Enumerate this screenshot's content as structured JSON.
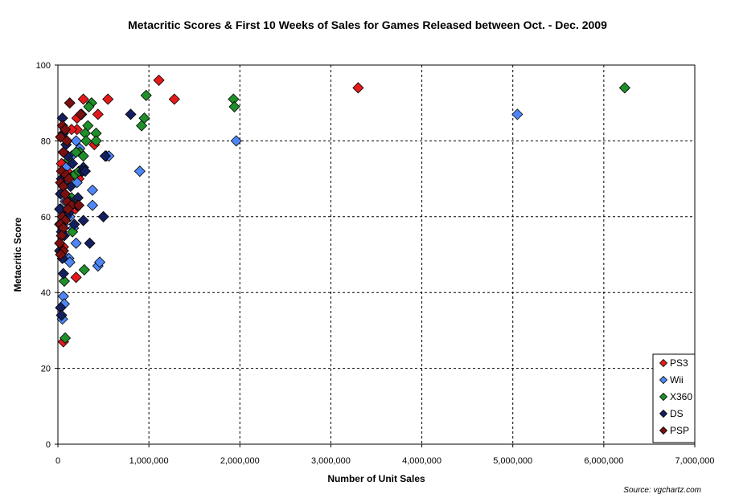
{
  "chart_data": {
    "type": "scatter",
    "title": "Metacritic Scores & First 10 Weeks of Sales for Games Released between Oct. - Dec. 2009",
    "xlabel": "Number of Unit Sales",
    "ylabel": "Metacritic Score",
    "source": "Source: vgchartz.com",
    "xlim": [
      0,
      7000000
    ],
    "ylim": [
      0,
      100
    ],
    "x_ticks": [
      0,
      1000000,
      2000000,
      3000000,
      4000000,
      5000000,
      6000000,
      7000000
    ],
    "x_tick_labels": [
      "0",
      "1,000,000",
      "2,000,000",
      "3,000,000",
      "4,000,000",
      "5,000,000",
      "6,000,000",
      "7,000,000"
    ],
    "y_ticks": [
      0,
      20,
      40,
      60,
      80,
      100
    ],
    "y_tick_labels": [
      "0",
      "20",
      "40",
      "60",
      "80",
      "100"
    ],
    "grid": true,
    "legend_position": "bottom-right",
    "series": [
      {
        "name": "PS3",
        "color": "#e31a1c",
        "points": [
          [
            1110000,
            96
          ],
          [
            3300000,
            94
          ],
          [
            550000,
            91
          ],
          [
            280000,
            91
          ],
          [
            1280000,
            91
          ],
          [
            440000,
            87
          ],
          [
            210000,
            86
          ],
          [
            210000,
            83
          ],
          [
            150000,
            83
          ],
          [
            400000,
            79
          ],
          [
            230000,
            70
          ],
          [
            190000,
            62
          ],
          [
            200000,
            44
          ],
          [
            60000,
            27
          ],
          [
            40000,
            74
          ],
          [
            30000,
            66
          ],
          [
            100000,
            72
          ],
          [
            20000,
            58
          ],
          [
            60000,
            52
          ],
          [
            90000,
            61
          ]
        ]
      },
      {
        "name": "Wii",
        "color": "#4f86f7",
        "points": [
          [
            5050000,
            87
          ],
          [
            1960000,
            80
          ],
          [
            900000,
            72
          ],
          [
            530000,
            76
          ],
          [
            560000,
            76
          ],
          [
            380000,
            67
          ],
          [
            380000,
            63
          ],
          [
            440000,
            47
          ],
          [
            460000,
            48
          ],
          [
            200000,
            53
          ],
          [
            120000,
            49
          ],
          [
            130000,
            48
          ],
          [
            60000,
            39
          ],
          [
            50000,
            33
          ],
          [
            70000,
            37
          ],
          [
            200000,
            80
          ],
          [
            240000,
            78
          ],
          [
            150000,
            76
          ],
          [
            100000,
            70
          ],
          [
            30000,
            62
          ],
          [
            60000,
            58
          ],
          [
            40000,
            55
          ],
          [
            80000,
            64
          ],
          [
            130000,
            60
          ],
          [
            170000,
            57
          ],
          [
            50000,
            50
          ],
          [
            90000,
            73
          ],
          [
            210000,
            69
          ]
        ]
      },
      {
        "name": "X360",
        "color": "#1f8f2a",
        "points": [
          [
            6230000,
            94
          ],
          [
            1930000,
            91
          ],
          [
            1940000,
            89
          ],
          [
            970000,
            92
          ],
          [
            950000,
            86
          ],
          [
            920000,
            84
          ],
          [
            370000,
            90
          ],
          [
            340000,
            89
          ],
          [
            260000,
            87
          ],
          [
            330000,
            84
          ],
          [
            420000,
            82
          ],
          [
            420000,
            80
          ],
          [
            300000,
            82
          ],
          [
            310000,
            80
          ],
          [
            240000,
            77
          ],
          [
            280000,
            76
          ],
          [
            200000,
            77
          ],
          [
            180000,
            71
          ],
          [
            160000,
            56
          ],
          [
            290000,
            46
          ],
          [
            70000,
            43
          ],
          [
            80000,
            28
          ],
          [
            60000,
            77
          ],
          [
            120000,
            75
          ],
          [
            230000,
            72
          ],
          [
            150000,
            65
          ],
          [
            220000,
            63
          ]
        ]
      },
      {
        "name": "DS",
        "color": "#14205e",
        "points": [
          [
            800000,
            87
          ],
          [
            520000,
            76
          ],
          [
            500000,
            60
          ],
          [
            350000,
            53
          ],
          [
            280000,
            59
          ],
          [
            280000,
            73
          ],
          [
            270000,
            72
          ],
          [
            300000,
            72
          ],
          [
            220000,
            65
          ],
          [
            210000,
            63
          ],
          [
            180000,
            58
          ],
          [
            130000,
            64
          ],
          [
            120000,
            61
          ],
          [
            50000,
            86
          ],
          [
            60000,
            82
          ],
          [
            40000,
            70
          ],
          [
            30000,
            66
          ],
          [
            20000,
            62
          ],
          [
            40000,
            56
          ],
          [
            50000,
            49
          ],
          [
            60000,
            45
          ],
          [
            30000,
            36
          ],
          [
            40000,
            34
          ],
          [
            90000,
            79
          ],
          [
            110000,
            76
          ],
          [
            160000,
            74
          ],
          [
            140000,
            68
          ],
          [
            90000,
            60
          ],
          [
            70000,
            55
          ],
          [
            20000,
            51
          ]
        ]
      },
      {
        "name": "PSP",
        "color": "#7a1010",
        "points": [
          [
            130000,
            90
          ],
          [
            250000,
            87
          ],
          [
            50000,
            84
          ],
          [
            80000,
            83
          ],
          [
            30000,
            81
          ],
          [
            100000,
            80
          ],
          [
            60000,
            77
          ],
          [
            40000,
            72
          ],
          [
            90000,
            71
          ],
          [
            120000,
            70
          ],
          [
            30000,
            69
          ],
          [
            60000,
            68
          ],
          [
            100000,
            64
          ],
          [
            150000,
            63
          ],
          [
            230000,
            63
          ],
          [
            50000,
            60
          ],
          [
            80000,
            59
          ],
          [
            30000,
            58
          ],
          [
            60000,
            57
          ],
          [
            40000,
            55
          ],
          [
            20000,
            53
          ],
          [
            60000,
            51
          ],
          [
            30000,
            50
          ],
          [
            80000,
            66
          ],
          [
            110000,
            62
          ]
        ]
      }
    ]
  }
}
